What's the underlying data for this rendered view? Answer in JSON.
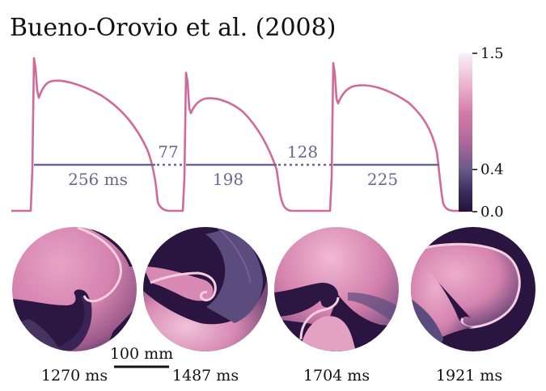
{
  "title": "Bueno-Orovio et al. (2008)",
  "colors": {
    "trace": "#d06a9a",
    "apd_line": "#6b6596",
    "cmap_low": "#2a1440",
    "cmap_mid": "#5c4c7d",
    "cmap_high": "#d06a9a",
    "cmap_top": "#f6eef6"
  },
  "trace": {
    "apd_labels": [
      "256 ms",
      "198",
      "225"
    ],
    "di_labels": [
      "77",
      "128"
    ]
  },
  "colorbar": {
    "ticks": [
      "1.5",
      "0.4",
      "0.0"
    ],
    "tick_values": [
      1.5,
      0.4,
      0.0
    ],
    "range": [
      0.0,
      1.5
    ]
  },
  "snapshots": {
    "times": [
      "1270 ms",
      "1487 ms",
      "1704 ms",
      "1921 ms"
    ]
  },
  "scalebar": {
    "label": "100 mm"
  }
}
